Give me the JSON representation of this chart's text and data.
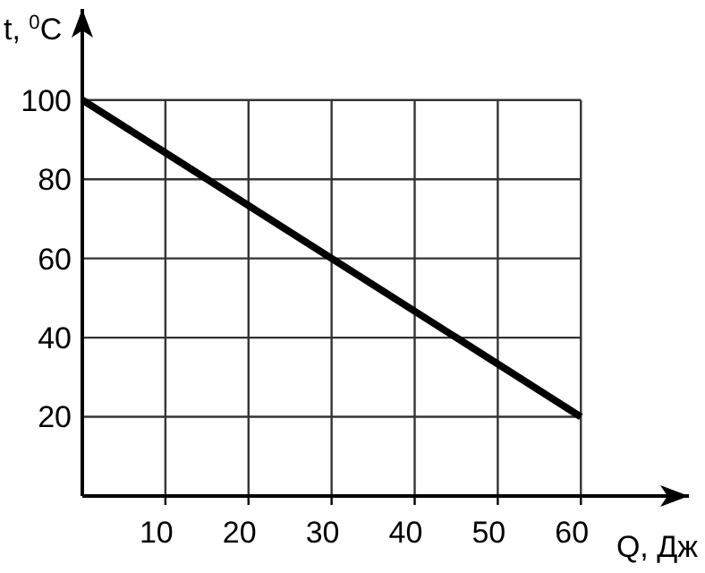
{
  "chart_data": {
    "type": "line",
    "xlabel": "Q, Дж",
    "ylabel": "t, $^{0}$C",
    "x": [
      0,
      60
    ],
    "series": [
      {
        "color": "#000000",
        "values": [
          100,
          20
        ]
      }
    ],
    "xlim": [
      0,
      73
    ],
    "ylim": [
      0,
      123
    ],
    "xticks": [
      10,
      20,
      30,
      40,
      50,
      60
    ],
    "yticks": [
      20,
      40,
      60,
      80,
      100
    ],
    "grid": true,
    "marker": "none",
    "line_style": "solid"
  }
}
